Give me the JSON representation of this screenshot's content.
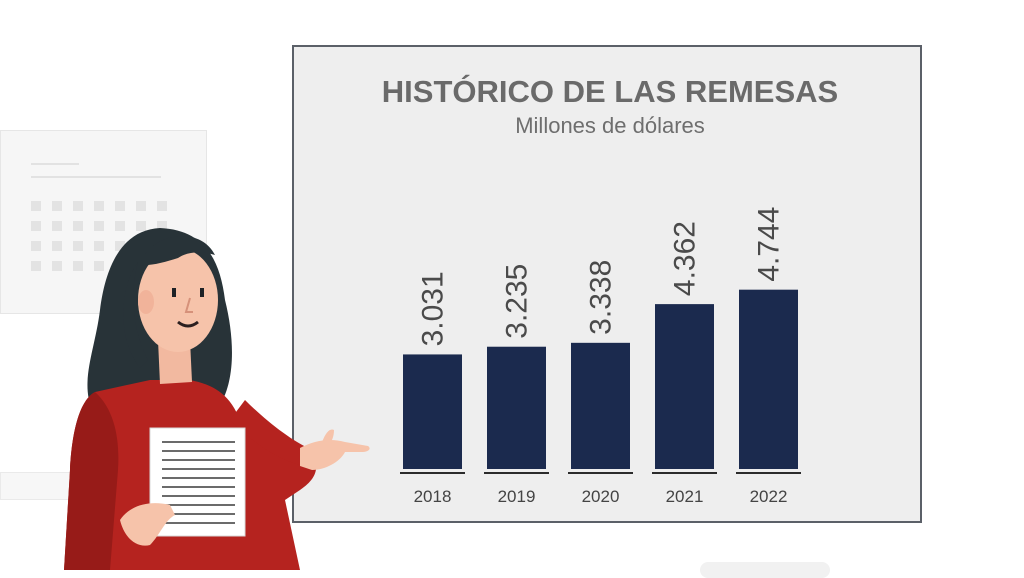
{
  "chart_data": {
    "type": "bar",
    "title": "HISTÓRICO DE LAS REMESAS",
    "subtitle": "Millones de dólares",
    "categories": [
      "2018",
      "2019",
      "2020",
      "2021",
      "2022"
    ],
    "values": [
      3031,
      3235,
      3338,
      4362,
      4744
    ],
    "value_labels": [
      "3.031",
      "3.235",
      "3.338",
      "4.362",
      "4.744"
    ],
    "bar_color": "#1b2a4e",
    "grid": false,
    "legend": "none"
  }
}
